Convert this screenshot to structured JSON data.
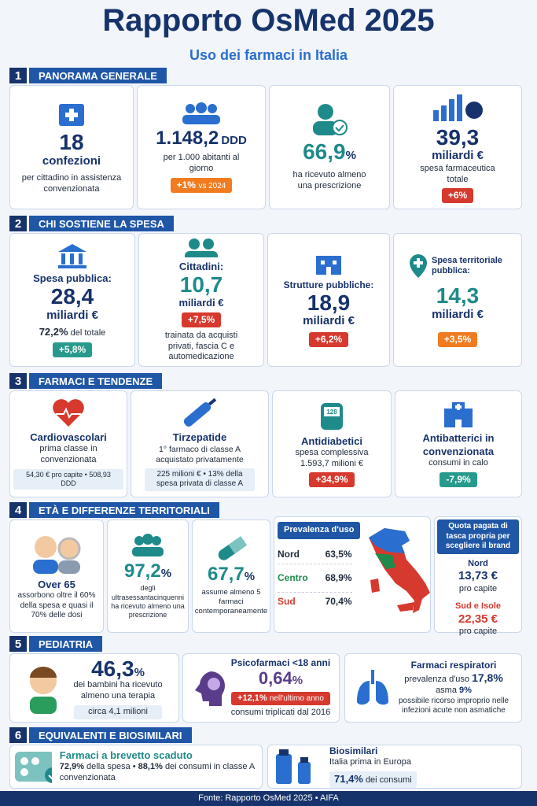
{
  "header": {
    "title": "Rapporto OsMed 2025",
    "subtitle": "Uso dei farmaci in Italia"
  },
  "sections": [
    {
      "number": "1",
      "title": "PANORAMA GENERALE",
      "cards": [
        {
          "value": "18",
          "unit": "confezioni",
          "text": "per cittadino in assistenza convenzionata"
        },
        {
          "value": "1.148,2",
          "unit": "DDD",
          "text": "per 1.000 abitanti al giorno",
          "badge": "+1%",
          "badge_note": "vs 2024"
        },
        {
          "value": "66,9",
          "unit": "%",
          "text": "ha ricevuto almeno una prescrizione"
        },
        {
          "value": "39,3",
          "unit": "miliardi €",
          "text": "spesa farmaceutica totale",
          "badge": "+6%"
        }
      ]
    },
    {
      "number": "2",
      "title": "CHI SOSTIENE LA SPESA",
      "cards": [
        {
          "label": "Spesa pubblica:",
          "value": "28,4",
          "unit": "miliardi €",
          "share": "72,2%",
          "share_note": "del totale",
          "badge": "+5,8%"
        },
        {
          "label": "Cittadini:",
          "value": "10,7",
          "unit": "miliardi €",
          "badge": "+7,5%",
          "text": "trainata da acquisti privati, fascia C e automedicazione"
        },
        {
          "label": "Strutture pubbliche:",
          "value": "18,9",
          "unit": "miliardi €",
          "badge": "+6,2%"
        },
        {
          "label": "Spesa territoriale pubblica:",
          "value": "14,3",
          "unit": "miliardi €",
          "badge": "+3,5%"
        }
      ]
    },
    {
      "number": "3",
      "title": "FARMACI E TENDENZE",
      "cards": [
        {
          "title": "Cardiovascolari",
          "text": "prima classe in convenzionata",
          "note": "54,30 € pro capite • 508,93 DDD"
        },
        {
          "title": "Tirzepatide",
          "text": "1° farmaco di classe A acquistato privatamente",
          "note": "225 milioni € • 13% della spesa privata di classe A"
        },
        {
          "title": "Antidiabetici",
          "icon_label": "128",
          "text": "spesa complessiva 1.593,7 milioni €",
          "badge": "+34,9%"
        },
        {
          "title": "Antibatterici in convenzionata",
          "text": "consumi in calo",
          "badge": "-7,9%"
        }
      ]
    },
    {
      "number": "4",
      "title": "ETÀ E DIFFERENZE TERRITORIALI",
      "cards": [
        {
          "title": "Over 65",
          "text": "assorbono oltre il 60% della spesa e quasi il 70% delle dosi"
        },
        {
          "value": "97,2",
          "unit": "%",
          "text": "degli ultrasessantacinquenni ha ricevuto almeno una prescrizione"
        },
        {
          "value": "67,7",
          "unit": "%",
          "text": "assume almeno 5 farmaci contemporaneamente"
        }
      ],
      "prevalence": {
        "title": "Prevalenza d'uso",
        "rows": [
          {
            "area": "Nord",
            "value": "63,5%"
          },
          {
            "area": "Centro",
            "value": "68,9%"
          },
          {
            "area": "Sud",
            "value": "70,4%"
          }
        ]
      },
      "brand": {
        "title": "Quota pagata di tasca propria per scegliere il brand",
        "rows": [
          {
            "area": "Nord",
            "value": "13,73 €",
            "note": "pro capite"
          },
          {
            "area": "Sud e Isole",
            "value": "22,35 €",
            "note": "pro capite"
          }
        ]
      }
    },
    {
      "number": "5",
      "title": "PEDIATRIA",
      "cards": [
        {
          "value": "46,3",
          "unit": "%",
          "text": "dei bambini ha ricevuto almeno una terapia",
          "note": "circa 4,1 milioni"
        },
        {
          "title": "Psicofarmaci <18 anni",
          "value": "0,64",
          "unit": "%",
          "badge": "+12,1%",
          "badge_note": "nell'ultimo anno",
          "text": "consumi triplicati dal 2016"
        },
        {
          "title": "Farmaci respiratori",
          "label1": "prevalenza d'uso",
          "value1": "17,8%",
          "label2": "asma",
          "value2": "9%",
          "text": "possibile ricorso improprio nelle infezioni acute non asmatiche"
        }
      ]
    },
    {
      "number": "6",
      "title": "EQUIVALENTI E BIOSIMILARI",
      "cards": [
        {
          "title": "Farmaci a brevetto scaduto",
          "value1": "72,9%",
          "text1": "della spesa •",
          "value2": "88,1%",
          "text2": "dei consumi in classe A convenzionata"
        },
        {
          "title": "Biosimilari",
          "text": "Italia prima in Europa",
          "value": "71,4%",
          "text2": "dei consumi"
        }
      ]
    }
  ],
  "footer": "Fonte: Rapporto OsMed 2025 • AIFA"
}
